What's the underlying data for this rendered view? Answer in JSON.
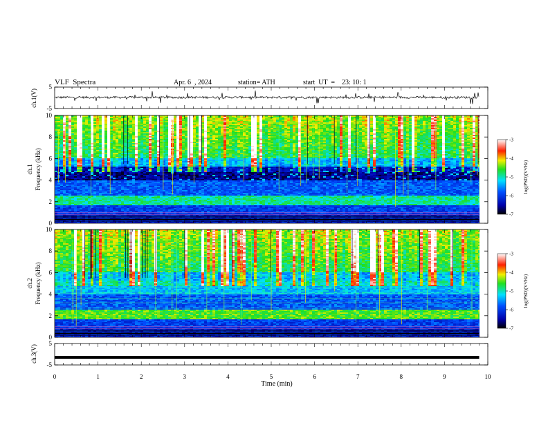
{
  "header": {
    "title": "VLF  Spectra",
    "date": "Apr. 6  , 2024",
    "station": "station= ATH",
    "start_ut": "start  UT  =    23: 10: 1"
  },
  "chart_data": [
    {
      "type": "line",
      "panel": "ch1-waveform",
      "ylabel": "ch.1(V)",
      "ylim": [
        -5,
        5
      ],
      "yticks": [
        5,
        -5
      ],
      "xlim": [
        0,
        10
      ],
      "baseline": 0.2,
      "noise_amplitude": 0.5,
      "spike_amplitude": 3,
      "data_end_x": 9.8,
      "color": "#000000"
    },
    {
      "type": "heatmap",
      "panel": "ch1-spectrogram",
      "ylabel_top": "ch.1",
      "ylabel": "Frequency (kHz)",
      "ylim": [
        0,
        10
      ],
      "yticks": [
        0,
        2,
        4,
        6,
        8,
        10
      ],
      "xlim": [
        0,
        10
      ],
      "data_end_x": 9.8,
      "colorbar": {
        "label": "log(PSD)(V²/Hz)",
        "range": [
          -7,
          -3
        ],
        "ticks": [
          -3,
          -4,
          -5,
          -6,
          -7
        ]
      },
      "quiet_band_khz": [
        4.0,
        5.2
      ],
      "bright_band_khz": [
        2.0,
        2.5
      ]
    },
    {
      "type": "heatmap",
      "panel": "ch2-spectrogram",
      "ylabel_top": "ch.2",
      "ylabel": "Frequency (kHz)",
      "ylim": [
        0,
        10
      ],
      "yticks": [
        0,
        2,
        4,
        6,
        8,
        10
      ],
      "xlim": [
        0,
        10
      ],
      "data_end_x": 9.8,
      "colorbar": {
        "label": "log(PSD)(V²/Hz)",
        "range": [
          -7,
          -3
        ],
        "ticks": [
          -3,
          -4,
          -5,
          -6,
          -7
        ]
      },
      "bright_band_khz": [
        1.8,
        2.2
      ]
    },
    {
      "type": "line",
      "panel": "ch3-waveform",
      "ylabel": "ch.3(V)",
      "ylim": [
        -5,
        5
      ],
      "yticks": [
        5,
        -5
      ],
      "xlim": [
        0,
        10
      ],
      "baseline": -1.5,
      "data_end_x": 9.8,
      "color": "#000000"
    }
  ],
  "x_axis": {
    "label": "Time  (min)",
    "ticks": [
      0,
      1,
      2,
      3,
      4,
      5,
      6,
      7,
      8,
      9,
      10
    ]
  }
}
